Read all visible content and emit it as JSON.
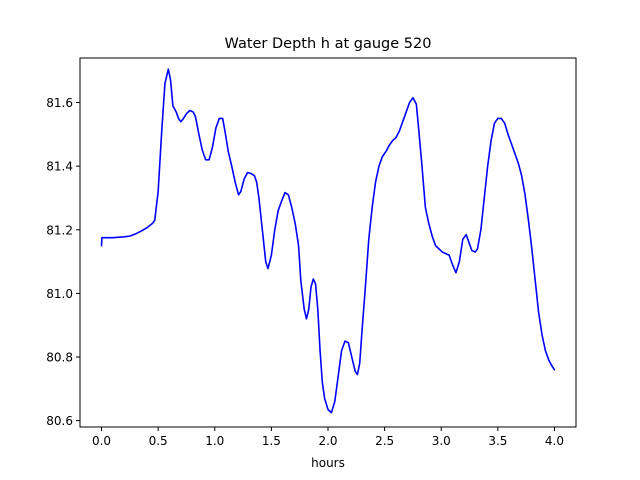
{
  "chart_data": {
    "type": "line",
    "title": "Water Depth h at gauge 520",
    "xlabel": "hours",
    "ylabel": "",
    "xlim": [
      -0.19,
      4.19
    ],
    "ylim": [
      80.58,
      81.74
    ],
    "xticks": [
      0.0,
      0.5,
      1.0,
      1.5,
      2.0,
      2.5,
      3.0,
      3.5,
      4.0
    ],
    "xtick_labels": [
      "0.0",
      "0.5",
      "1.0",
      "1.5",
      "2.0",
      "2.5",
      "3.0",
      "3.5",
      "4.0"
    ],
    "yticks": [
      80.6,
      80.8,
      81.0,
      81.2,
      81.4,
      81.6
    ],
    "ytick_labels": [
      "80.6",
      "80.8",
      "81.0",
      "81.2",
      "81.4",
      "81.6"
    ],
    "grid": false,
    "series": [
      {
        "color": "#0000ff",
        "points": [
          [
            0.0,
            81.15
          ],
          [
            0.003,
            81.175
          ],
          [
            0.1,
            81.175
          ],
          [
            0.2,
            81.178
          ],
          [
            0.25,
            81.18
          ],
          [
            0.3,
            81.187
          ],
          [
            0.35,
            81.196
          ],
          [
            0.4,
            81.206
          ],
          [
            0.45,
            81.22
          ],
          [
            0.47,
            81.23
          ],
          [
            0.5,
            81.32
          ],
          [
            0.53,
            81.5
          ],
          [
            0.56,
            81.66
          ],
          [
            0.59,
            81.705
          ],
          [
            0.61,
            81.67
          ],
          [
            0.63,
            81.59
          ],
          [
            0.66,
            81.57
          ],
          [
            0.68,
            81.55
          ],
          [
            0.7,
            81.54
          ],
          [
            0.72,
            81.548
          ],
          [
            0.75,
            81.565
          ],
          [
            0.78,
            81.575
          ],
          [
            0.81,
            81.57
          ],
          [
            0.83,
            81.555
          ],
          [
            0.86,
            81.5
          ],
          [
            0.89,
            81.45
          ],
          [
            0.92,
            81.42
          ],
          [
            0.95,
            81.42
          ],
          [
            0.98,
            81.46
          ],
          [
            1.01,
            81.52
          ],
          [
            1.04,
            81.55
          ],
          [
            1.07,
            81.55
          ],
          [
            1.09,
            81.51
          ],
          [
            1.12,
            81.445
          ],
          [
            1.15,
            81.4
          ],
          [
            1.18,
            81.35
          ],
          [
            1.21,
            81.31
          ],
          [
            1.23,
            81.32
          ],
          [
            1.26,
            81.36
          ],
          [
            1.29,
            81.38
          ],
          [
            1.32,
            81.377
          ],
          [
            1.35,
            81.37
          ],
          [
            1.37,
            81.35
          ],
          [
            1.39,
            81.3
          ],
          [
            1.42,
            81.2
          ],
          [
            1.45,
            81.1
          ],
          [
            1.47,
            81.078
          ],
          [
            1.5,
            81.12
          ],
          [
            1.53,
            81.2
          ],
          [
            1.56,
            81.26
          ],
          [
            1.59,
            81.29
          ],
          [
            1.62,
            81.317
          ],
          [
            1.65,
            81.31
          ],
          [
            1.68,
            81.27
          ],
          [
            1.71,
            81.22
          ],
          [
            1.74,
            81.15
          ],
          [
            1.76,
            81.04
          ],
          [
            1.79,
            80.95
          ],
          [
            1.81,
            80.92
          ],
          [
            1.83,
            80.95
          ],
          [
            1.85,
            81.02
          ],
          [
            1.87,
            81.045
          ],
          [
            1.89,
            81.03
          ],
          [
            1.91,
            80.95
          ],
          [
            1.93,
            80.82
          ],
          [
            1.95,
            80.72
          ],
          [
            1.97,
            80.67
          ],
          [
            2.0,
            80.635
          ],
          [
            2.03,
            80.625
          ],
          [
            2.06,
            80.66
          ],
          [
            2.09,
            80.74
          ],
          [
            2.12,
            80.82
          ],
          [
            2.15,
            80.85
          ],
          [
            2.18,
            80.845
          ],
          [
            2.21,
            80.8
          ],
          [
            2.24,
            80.755
          ],
          [
            2.26,
            80.745
          ],
          [
            2.28,
            80.78
          ],
          [
            2.3,
            80.88
          ],
          [
            2.33,
            81.02
          ],
          [
            2.36,
            81.17
          ],
          [
            2.39,
            81.27
          ],
          [
            2.42,
            81.35
          ],
          [
            2.45,
            81.4
          ],
          [
            2.48,
            81.43
          ],
          [
            2.51,
            81.445
          ],
          [
            2.54,
            81.465
          ],
          [
            2.57,
            81.48
          ],
          [
            2.6,
            81.49
          ],
          [
            2.63,
            81.51
          ],
          [
            2.66,
            81.54
          ],
          [
            2.69,
            81.57
          ],
          [
            2.72,
            81.6
          ],
          [
            2.75,
            81.615
          ],
          [
            2.78,
            81.595
          ],
          [
            2.8,
            81.52
          ],
          [
            2.83,
            81.4
          ],
          [
            2.86,
            81.27
          ],
          [
            2.89,
            81.22
          ],
          [
            2.92,
            81.18
          ],
          [
            2.95,
            81.15
          ],
          [
            2.98,
            81.14
          ],
          [
            3.01,
            81.13
          ],
          [
            3.04,
            81.125
          ],
          [
            3.07,
            81.12
          ],
          [
            3.1,
            81.09
          ],
          [
            3.13,
            81.065
          ],
          [
            3.16,
            81.1
          ],
          [
            3.19,
            81.17
          ],
          [
            3.22,
            81.185
          ],
          [
            3.25,
            81.155
          ],
          [
            3.27,
            81.135
          ],
          [
            3.3,
            81.13
          ],
          [
            3.32,
            81.14
          ],
          [
            3.35,
            81.2
          ],
          [
            3.38,
            81.3
          ],
          [
            3.41,
            81.4
          ],
          [
            3.44,
            81.48
          ],
          [
            3.47,
            81.535
          ],
          [
            3.5,
            81.55
          ],
          [
            3.53,
            81.55
          ],
          [
            3.56,
            81.535
          ],
          [
            3.59,
            81.5
          ],
          [
            3.62,
            81.47
          ],
          [
            3.65,
            81.44
          ],
          [
            3.68,
            81.41
          ],
          [
            3.71,
            81.37
          ],
          [
            3.74,
            81.31
          ],
          [
            3.77,
            81.23
          ],
          [
            3.8,
            81.14
          ],
          [
            3.83,
            81.04
          ],
          [
            3.86,
            80.94
          ],
          [
            3.89,
            80.87
          ],
          [
            3.92,
            80.82
          ],
          [
            3.95,
            80.79
          ],
          [
            3.98,
            80.77
          ],
          [
            4.0,
            80.76
          ]
        ]
      }
    ]
  }
}
